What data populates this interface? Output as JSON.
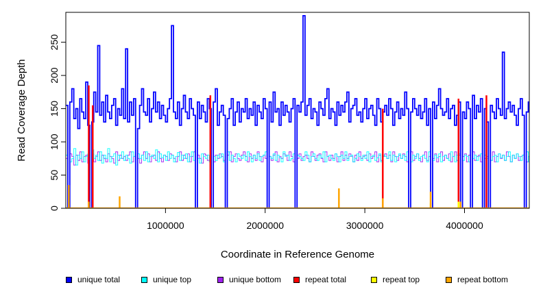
{
  "chart_data": {
    "type": "line",
    "title": "",
    "xlabel": "Coordinate in Reference Genome",
    "ylabel": "Read Coverage Depth",
    "xlim": [
      0,
      4650000
    ],
    "ylim": [
      0,
      295
    ],
    "x_ticks": [
      1000000,
      2000000,
      3000000,
      4000000
    ],
    "x_tick_labels": [
      "1000000",
      "2000000",
      "3000000",
      "4000000"
    ],
    "y_ticks": [
      0,
      50,
      100,
      150,
      200,
      250
    ],
    "y_tick_labels": [
      "0",
      "50",
      "100",
      "150",
      "200",
      "250"
    ],
    "grid": false,
    "legend_position": "bottom",
    "series": [
      {
        "name": "unique total",
        "color": "#0000ff",
        "x_step": 20000,
        "values": [
          155,
          140,
          160,
          180,
          135,
          150,
          120,
          165,
          145,
          135,
          190,
          125,
          160,
          130,
          175,
          145,
          245,
          140,
          160,
          130,
          170,
          145,
          135,
          155,
          165,
          125,
          150,
          140,
          180,
          135,
          240,
          130,
          160,
          140,
          165,
          150,
          120,
          155,
          180,
          145,
          140,
          165,
          130,
          150,
          175,
          145,
          160,
          135,
          155,
          140,
          130,
          150,
          165,
          275,
          145,
          135,
          160,
          125,
          150,
          170,
          145,
          135,
          165,
          150,
          140,
          125,
          160,
          135,
          155,
          145,
          130,
          165,
          150,
          140,
          160,
          180,
          125,
          145,
          155,
          140,
          160,
          135,
          150,
          165,
          125,
          145,
          160,
          130,
          150,
          145,
          165,
          135,
          150,
          140,
          160,
          125,
          155,
          145,
          135,
          165,
          150,
          140,
          160,
          130,
          175,
          145,
          150,
          125,
          160,
          140,
          155,
          145,
          130,
          150,
          165,
          135,
          155,
          145,
          160,
          290,
          140,
          155,
          165,
          135,
          150,
          145,
          125,
          160,
          150,
          140,
          165,
          180,
          135,
          150,
          145,
          125,
          160,
          140,
          155,
          145,
          160,
          175,
          130,
          150,
          155,
          165,
          140,
          145,
          130,
          150,
          165,
          135,
          150,
          155,
          140,
          125,
          165,
          150,
          130,
          145,
          155,
          140,
          165,
          150,
          125,
          145,
          160,
          135,
          150,
          140,
          175,
          150,
          130,
          145,
          165,
          150,
          140,
          155,
          135,
          145,
          165,
          125,
          150,
          140,
          160,
          135,
          155,
          180,
          150,
          140,
          145,
          165,
          135,
          150,
          155,
          125,
          140,
          160,
          150,
          145,
          135,
          160,
          150,
          140,
          170,
          135,
          155,
          145,
          165,
          140,
          150,
          130,
          160,
          155,
          145,
          135,
          165,
          150,
          140,
          235,
          135,
          150,
          160,
          145,
          155,
          140,
          125,
          150,
          165,
          140,
          155,
          145,
          160,
          135,
          150
        ]
      },
      {
        "name": "unique top",
        "color": "#00ffff",
        "x_step": 20000,
        "values": [
          80,
          85,
          70,
          75,
          90,
          65,
          80,
          75,
          85,
          70,
          78,
          82,
          70,
          88,
          75,
          80,
          72,
          85,
          68,
          80,
          75,
          90,
          70,
          78,
          82,
          65,
          80,
          75,
          85,
          72,
          80,
          75,
          68,
          85,
          78,
          70,
          82,
          75,
          80,
          72,
          85,
          70,
          78,
          80,
          75,
          88,
          70,
          82,
          76,
          80,
          72,
          85,
          75,
          80,
          70,
          78,
          84,
          72,
          80,
          75,
          82,
          70,
          78,
          85,
          72,
          80,
          75,
          68,
          82,
          78,
          75,
          80,
          70,
          85,
          78,
          72,
          80,
          76,
          82,
          70,
          78,
          85,
          72,
          80,
          75,
          70,
          82,
          78,
          75,
          80,
          72,
          85,
          78,
          70,
          80,
          75,
          82,
          72,
          78,
          80,
          85,
          70,
          78,
          75,
          82,
          72,
          80,
          76,
          70,
          85,
          78,
          80,
          72,
          75,
          82,
          70,
          80,
          78,
          75,
          72,
          85,
          80,
          70,
          78,
          82,
          75,
          72,
          80,
          76,
          85,
          70,
          78,
          80,
          75,
          72,
          82,
          78,
          70,
          80,
          75,
          85,
          72,
          78,
          80,
          70,
          75,
          82,
          78,
          72,
          80,
          75,
          85,
          70,
          78,
          80,
          72,
          76,
          82,
          70,
          80,
          78,
          75,
          85,
          72,
          80,
          70,
          78,
          82,
          75,
          80,
          72,
          85,
          78,
          70,
          80,
          75,
          82,
          72,
          78,
          80,
          75,
          70,
          85,
          78,
          72,
          80,
          76,
          82,
          70,
          78,
          80,
          75,
          72,
          85,
          78,
          70,
          80,
          82,
          75,
          72,
          80,
          78,
          70,
          85,
          75,
          80,
          72,
          78,
          82,
          70,
          80,
          75,
          85,
          72,
          78,
          80,
          70,
          82,
          76,
          80,
          72,
          78,
          85,
          70,
          80,
          75,
          82,
          78,
          72,
          80,
          75,
          85,
          70,
          78,
          80
        ]
      },
      {
        "name": "unique bottom",
        "color": "#a020f0",
        "x_step": 20000,
        "values": [
          75,
          70,
          82,
          78,
          65,
          80,
          72,
          85,
          70,
          78,
          80,
          68,
          75,
          82,
          70,
          78,
          85,
          72,
          80,
          75,
          70,
          82,
          78,
          75,
          68,
          85,
          72,
          80,
          75,
          78,
          72,
          80,
          85,
          70,
          78,
          82,
          75,
          68,
          80,
          85,
          75,
          82,
          70,
          78,
          80,
          72,
          85,
          75,
          70,
          80,
          78,
          72,
          82,
          80,
          75,
          70,
          78,
          85,
          72,
          80,
          75,
          82,
          70,
          78,
          85,
          72,
          80,
          75,
          68,
          82,
          80,
          72,
          78,
          85,
          70,
          80,
          75,
          82,
          78,
          72,
          75,
          80,
          85,
          70,
          78,
          82,
          75,
          72,
          80,
          85,
          78,
          70,
          82,
          75,
          80,
          72,
          85,
          78,
          70,
          80,
          75,
          82,
          78,
          72,
          80,
          85,
          70,
          78,
          75,
          82,
          80,
          72,
          85,
          78,
          70,
          80,
          75,
          82,
          72,
          78,
          80,
          75,
          70,
          85,
          78,
          72,
          80,
          82,
          75,
          70,
          85,
          78,
          72,
          80,
          75,
          82,
          70,
          78,
          85,
          72,
          80,
          75,
          82,
          78,
          70,
          80,
          72,
          85,
          75,
          78,
          80,
          72,
          82,
          75,
          78,
          85,
          70,
          80,
          72,
          78,
          82,
          75,
          80,
          70,
          85,
          78,
          72,
          80,
          75,
          82,
          78,
          70,
          80,
          85,
          72,
          78,
          82,
          75,
          70,
          80,
          85,
          72,
          78,
          80,
          75,
          82,
          70,
          78,
          85,
          72,
          80,
          75,
          82,
          70,
          78,
          85,
          72,
          80,
          75,
          78,
          82,
          70,
          80,
          75,
          85,
          72,
          78,
          80,
          70,
          82,
          75,
          78,
          80,
          72,
          85,
          70,
          78,
          82,
          75,
          80,
          72,
          85,
          78,
          70,
          80,
          75,
          82,
          72,
          78,
          80,
          85,
          70,
          78,
          75,
          82
        ]
      },
      {
        "name": "repeat total",
        "color": "#ff0000",
        "x": [
          230000,
          270000,
          1450000,
          3180000,
          3940000,
          4220000
        ],
        "values": [
          185,
          155,
          170,
          150,
          165,
          170
        ]
      },
      {
        "name": "repeat top",
        "color": "#ffff00",
        "x": [
          3660000,
          3940000
        ],
        "values": [
          8,
          10
        ]
      },
      {
        "name": "repeat bottom",
        "color": "#ffa500",
        "x": [
          30000,
          230000,
          540000,
          2740000,
          3180000,
          3660000,
          3960000
        ],
        "values": [
          35,
          10,
          18,
          30,
          15,
          25,
          10
        ]
      }
    ],
    "dropouts_x": [
      20000,
      230000,
      700000,
      1300000,
      1450000,
      1600000,
      2020000,
      2300000,
      3430000,
      3650000,
      3960000,
      4060000,
      4180000,
      4230000,
      4590000
    ]
  },
  "legend": {
    "items": [
      {
        "label": "unique total",
        "color": "#0000ff"
      },
      {
        "label": "unique top",
        "color": "#00ffff"
      },
      {
        "label": "unique bottom",
        "color": "#a020f0"
      },
      {
        "label": "repeat total",
        "color": "#ff0000"
      },
      {
        "label": "repeat top",
        "color": "#ffff00"
      },
      {
        "label": "repeat bottom",
        "color": "#ffa500"
      }
    ]
  }
}
